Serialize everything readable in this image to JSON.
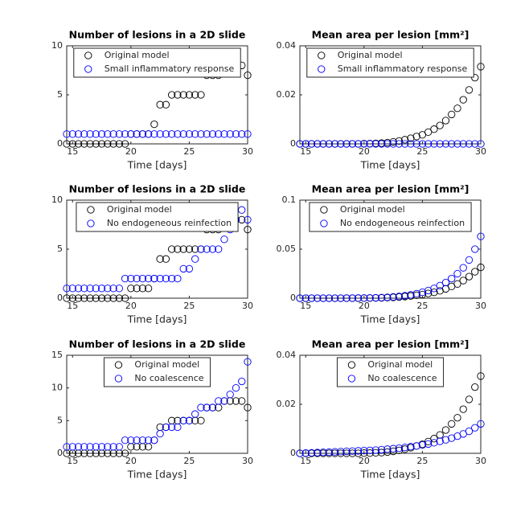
{
  "chart_data": [
    {
      "type": "scatter",
      "title": "Number of lesions in a 2D slide",
      "xlabel": "Time [days]",
      "legend": "north",
      "xlim": [
        14.5,
        30
      ],
      "xticks": [
        15,
        20,
        25,
        30
      ],
      "ylim": [
        0,
        10
      ],
      "yticks": [
        0,
        5,
        10
      ],
      "x": [
        14.5,
        15,
        15.5,
        16,
        16.5,
        17,
        17.5,
        18,
        18.5,
        19,
        19.5,
        20,
        20.5,
        21,
        21.5,
        22,
        22.5,
        23,
        23.5,
        24,
        24.5,
        25,
        25.5,
        26,
        26.5,
        27,
        27.5,
        28,
        28.5,
        29,
        29.5,
        30
      ],
      "series": [
        {
          "name": "Original model",
          "color": "#000000",
          "values": [
            0,
            0,
            0,
            0,
            0,
            0,
            0,
            0,
            0,
            0,
            0,
            1,
            1,
            1,
            1,
            2,
            4,
            4,
            5,
            5,
            5,
            5,
            5,
            5,
            7,
            7,
            7,
            8,
            8,
            8,
            8,
            7
          ]
        },
        {
          "name": "Small inflammatory response",
          "color": "#0000ff",
          "values": [
            1,
            1,
            1,
            1,
            1,
            1,
            1,
            1,
            1,
            1,
            1,
            1,
            1,
            1,
            1,
            1,
            1,
            1,
            1,
            1,
            1,
            1,
            1,
            1,
            1,
            1,
            1,
            1,
            1,
            1,
            1,
            1
          ]
        }
      ]
    },
    {
      "type": "scatter",
      "title": "Mean area per lesion [mm²]",
      "xlabel": "Time [days]",
      "legend": "north",
      "xlim": [
        14.5,
        30
      ],
      "xticks": [
        15,
        20,
        25,
        30
      ],
      "ylim": [
        0,
        0.04
      ],
      "yticks": [
        0,
        0.02,
        0.04
      ],
      "x": [
        14.5,
        15,
        15.5,
        16,
        16.5,
        17,
        17.5,
        18,
        18.5,
        19,
        19.5,
        20,
        20.5,
        21,
        21.5,
        22,
        22.5,
        23,
        23.5,
        24,
        24.5,
        25,
        25.5,
        26,
        26.5,
        27,
        27.5,
        28,
        28.5,
        29,
        29.5,
        30
      ],
      "series": [
        {
          "name": "Original model",
          "color": "#000000",
          "values": [
            0,
            0,
            0,
            0,
            0,
            0,
            0,
            0,
            0,
            0,
            0,
            0.0001,
            0.0001,
            0.0002,
            0.0003,
            0.0005,
            0.0008,
            0.0012,
            0.0017,
            0.0023,
            0.003,
            0.0037,
            0.0048,
            0.006,
            0.0075,
            0.0095,
            0.012,
            0.0145,
            0.018,
            0.022,
            0.027,
            0.0315
          ]
        },
        {
          "name": "Small inflammatory response",
          "color": "#0000ff",
          "values": [
            0,
            0,
            0,
            0,
            0,
            0,
            0,
            0,
            0,
            0,
            0,
            0,
            0,
            0,
            0,
            0,
            0,
            0,
            0,
            0,
            0,
            0,
            0,
            0,
            0,
            0,
            0,
            0,
            0,
            0,
            0,
            0
          ]
        }
      ]
    },
    {
      "type": "scatter",
      "title": "Number of lesions in a 2D slide",
      "xlabel": "Time [days]",
      "legend": "north",
      "xlim": [
        14.5,
        30
      ],
      "xticks": [
        15,
        20,
        25,
        30
      ],
      "ylim": [
        0,
        10
      ],
      "yticks": [
        0,
        5,
        10
      ],
      "x": [
        14.5,
        15,
        15.5,
        16,
        16.5,
        17,
        17.5,
        18,
        18.5,
        19,
        19.5,
        20,
        20.5,
        21,
        21.5,
        22,
        22.5,
        23,
        23.5,
        24,
        24.5,
        25,
        25.5,
        26,
        26.5,
        27,
        27.5,
        28,
        28.5,
        29,
        29.5,
        30
      ],
      "series": [
        {
          "name": "Original model",
          "color": "#000000",
          "values": [
            0,
            0,
            0,
            0,
            0,
            0,
            0,
            0,
            0,
            0,
            0,
            1,
            1,
            1,
            1,
            2,
            4,
            4,
            5,
            5,
            5,
            5,
            5,
            5,
            7,
            7,
            7,
            8,
            8,
            8,
            8,
            7
          ]
        },
        {
          "name": "No endogeneous reinfection",
          "color": "#0000ff",
          "values": [
            1,
            1,
            1,
            1,
            1,
            1,
            1,
            1,
            1,
            1,
            2,
            2,
            2,
            2,
            2,
            2,
            2,
            2,
            2,
            2,
            3,
            3,
            4,
            5,
            5,
            5,
            5,
            6,
            7,
            8,
            9,
            8
          ]
        }
      ]
    },
    {
      "type": "scatter",
      "title": "Mean area per lesion [mm²]",
      "xlabel": "Time [days]",
      "legend": "north",
      "xlim": [
        14.5,
        30
      ],
      "xticks": [
        15,
        20,
        25,
        30
      ],
      "ylim": [
        0,
        0.1
      ],
      "yticks": [
        0,
        0.05,
        0.1
      ],
      "x": [
        14.5,
        15,
        15.5,
        16,
        16.5,
        17,
        17.5,
        18,
        18.5,
        19,
        19.5,
        20,
        20.5,
        21,
        21.5,
        22,
        22.5,
        23,
        23.5,
        24,
        24.5,
        25,
        25.5,
        26,
        26.5,
        27,
        27.5,
        28,
        28.5,
        29,
        29.5,
        30
      ],
      "series": [
        {
          "name": "Original model",
          "color": "#000000",
          "values": [
            0,
            0,
            0,
            0,
            0,
            0,
            0,
            0,
            0,
            0,
            0,
            0.0001,
            0.0001,
            0.0002,
            0.0003,
            0.0005,
            0.0008,
            0.0012,
            0.0017,
            0.0023,
            0.003,
            0.0037,
            0.0048,
            0.006,
            0.0075,
            0.0095,
            0.012,
            0.0145,
            0.018,
            0.022,
            0.027,
            0.0315
          ]
        },
        {
          "name": "No endogeneous reinfection",
          "color": "#0000ff",
          "values": [
            0,
            0,
            0,
            0,
            0,
            0,
            0,
            0,
            0.0001,
            0.0001,
            0.0002,
            0.0002,
            0.0003,
            0.0004,
            0.0006,
            0.0009,
            0.0013,
            0.0018,
            0.0025,
            0.0034,
            0.0046,
            0.006,
            0.0078,
            0.01,
            0.0128,
            0.016,
            0.02,
            0.025,
            0.031,
            0.039,
            0.05,
            0.063
          ]
        }
      ]
    },
    {
      "type": "scatter",
      "title": "Number of lesions in a 2D slide",
      "xlabel": "Time [days]",
      "legend": "north",
      "xlim": [
        14.5,
        30
      ],
      "xticks": [
        15,
        20,
        25,
        30
      ],
      "ylim": [
        0,
        15
      ],
      "yticks": [
        0,
        5,
        10,
        15
      ],
      "x": [
        14.5,
        15,
        15.5,
        16,
        16.5,
        17,
        17.5,
        18,
        18.5,
        19,
        19.5,
        20,
        20.5,
        21,
        21.5,
        22,
        22.5,
        23,
        23.5,
        24,
        24.5,
        25,
        25.5,
        26,
        26.5,
        27,
        27.5,
        28,
        28.5,
        29,
        29.5,
        30
      ],
      "series": [
        {
          "name": "Original model",
          "color": "#000000",
          "values": [
            0,
            0,
            0,
            0,
            0,
            0,
            0,
            0,
            0,
            0,
            0,
            1,
            1,
            1,
            1,
            2,
            4,
            4,
            5,
            5,
            5,
            5,
            5,
            5,
            7,
            7,
            7,
            8,
            8,
            8,
            8,
            7
          ]
        },
        {
          "name": "No coalescence",
          "color": "#0000ff",
          "values": [
            1,
            1,
            1,
            1,
            1,
            1,
            1,
            1,
            1,
            1,
            2,
            2,
            2,
            2,
            2,
            2,
            3,
            4,
            4,
            4,
            5,
            5,
            6,
            7,
            7,
            7,
            8,
            8,
            9,
            10,
            11,
            14
          ]
        }
      ]
    },
    {
      "type": "scatter",
      "title": "Mean area per lesion [mm²]",
      "xlabel": "Time [days]",
      "legend": "north",
      "xlim": [
        14.5,
        30
      ],
      "xticks": [
        15,
        20,
        25,
        30
      ],
      "ylim": [
        0,
        0.04
      ],
      "yticks": [
        0,
        0.02,
        0.04
      ],
      "x": [
        14.5,
        15,
        15.5,
        16,
        16.5,
        17,
        17.5,
        18,
        18.5,
        19,
        19.5,
        20,
        20.5,
        21,
        21.5,
        22,
        22.5,
        23,
        23.5,
        24,
        24.5,
        25,
        25.5,
        26,
        26.5,
        27,
        27.5,
        28,
        28.5,
        29,
        29.5,
        30
      ],
      "series": [
        {
          "name": "Original model",
          "color": "#000000",
          "values": [
            0,
            0,
            0,
            0,
            0,
            0,
            0,
            0,
            0,
            0,
            0,
            0.0001,
            0.0001,
            0.0002,
            0.0003,
            0.0005,
            0.0008,
            0.0012,
            0.0017,
            0.0023,
            0.003,
            0.0037,
            0.0048,
            0.006,
            0.0075,
            0.0095,
            0.012,
            0.0145,
            0.018,
            0.022,
            0.027,
            0.0315
          ]
        },
        {
          "name": "No coalescence",
          "color": "#0000ff",
          "values": [
            0,
            0.0001,
            0.0002,
            0.0003,
            0.0004,
            0.0005,
            0.0006,
            0.0007,
            0.0008,
            0.0009,
            0.001,
            0.0011,
            0.0012,
            0.0013,
            0.0015,
            0.0017,
            0.0019,
            0.0021,
            0.0024,
            0.0027,
            0.003,
            0.0034,
            0.0038,
            0.0043,
            0.0049,
            0.0055,
            0.0062,
            0.007,
            0.0079,
            0.009,
            0.0104,
            0.012
          ]
        }
      ]
    }
  ]
}
